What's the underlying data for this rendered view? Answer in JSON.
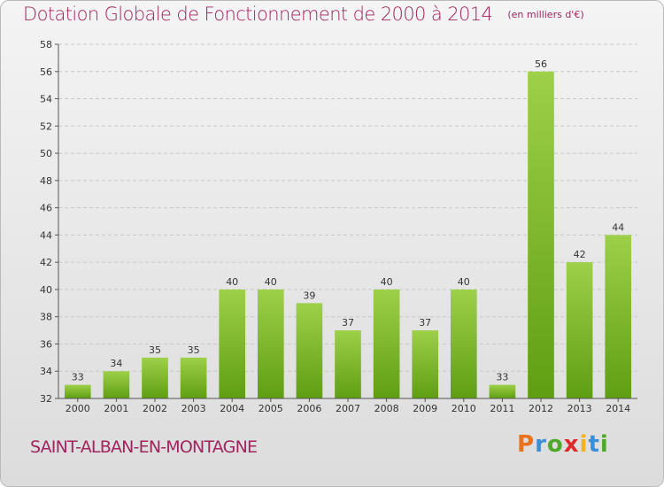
{
  "title": "Dotation Globale de Fonctionnement de 2000 à 2014",
  "unit_note": "(en milliers d'€)",
  "commune": "SAINT-ALBAN-EN-MONTAGNE",
  "brand": "Proxiti",
  "colors": {
    "title": "#a0255f",
    "bar_light": "#9ed04a",
    "bar_dark": "#5f9e12",
    "grid": "#c8c8c8",
    "axis": "#555555"
  },
  "chart_data": {
    "type": "bar",
    "title": "Dotation Globale de Fonctionnement de 2000 à 2014",
    "xlabel": "",
    "ylabel": "(en milliers d'€)",
    "categories": [
      "2000",
      "2001",
      "2002",
      "2003",
      "2004",
      "2005",
      "2006",
      "2007",
      "2008",
      "2009",
      "2010",
      "2011",
      "2012",
      "2013",
      "2014"
    ],
    "values": [
      33,
      34,
      35,
      35,
      40,
      40,
      39,
      37,
      40,
      37,
      40,
      33,
      56,
      42,
      44
    ],
    "ylim": [
      32,
      58
    ],
    "ytick_step": 2,
    "grid": true
  }
}
